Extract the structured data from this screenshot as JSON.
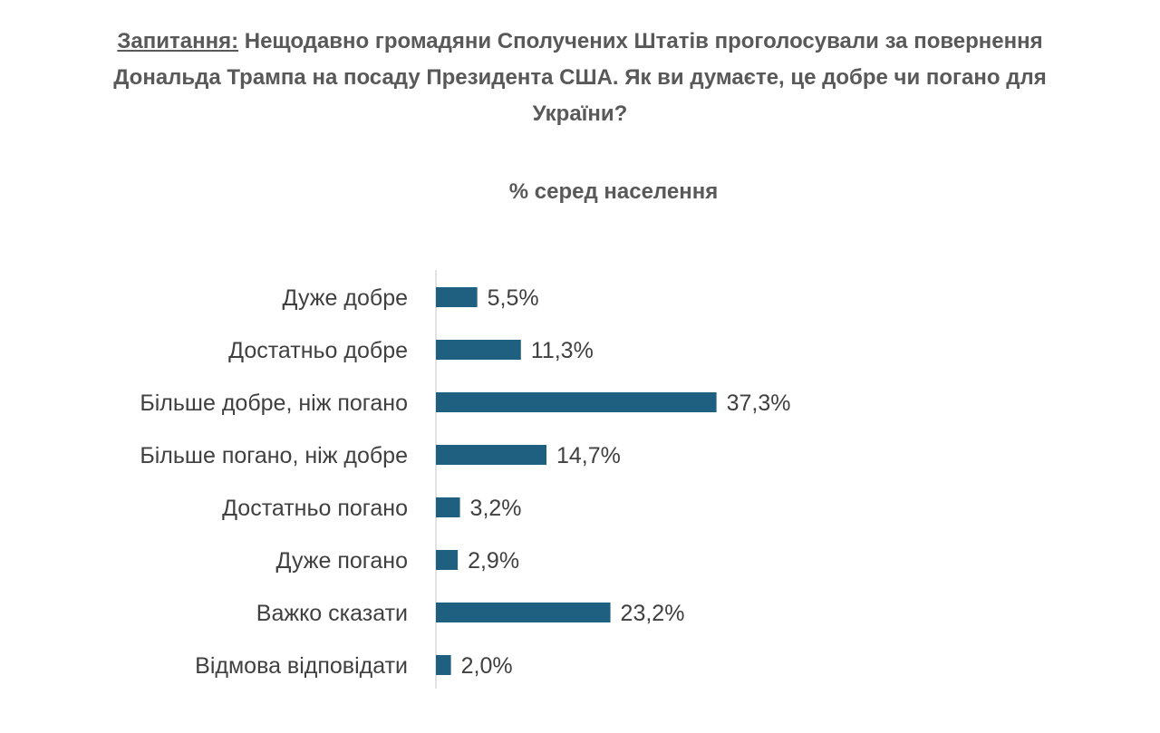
{
  "question": {
    "label": "Запитання:",
    "line1": "Нещодавно громадяни Сполучених Штатів проголосували за повернення",
    "line2": "Дональда Трампа на посаду Президента США. Як ви думаєте, це добре чи погано для",
    "line3": "України?"
  },
  "chart_data": {
    "type": "bar",
    "orientation": "horizontal",
    "title": "% серед населення",
    "categories": [
      "Дуже добре",
      "Достатньо добре",
      "Більше добре, ніж погано",
      "Більше погано, ніж добре",
      "Достатньо погано",
      "Дуже погано",
      "Важко сказати",
      "Відмова відповідати"
    ],
    "values": [
      5.5,
      11.3,
      37.3,
      14.7,
      3.2,
      2.9,
      23.2,
      2.0
    ],
    "value_labels": [
      "5,5%",
      "11,3%",
      "37,3%",
      "14,7%",
      "3,2%",
      "2,9%",
      "23,2%",
      "2,0%"
    ],
    "bar_color": "#1f5f7f",
    "axis_color": "#d9d9d9",
    "xlabel": "",
    "ylabel": ""
  }
}
